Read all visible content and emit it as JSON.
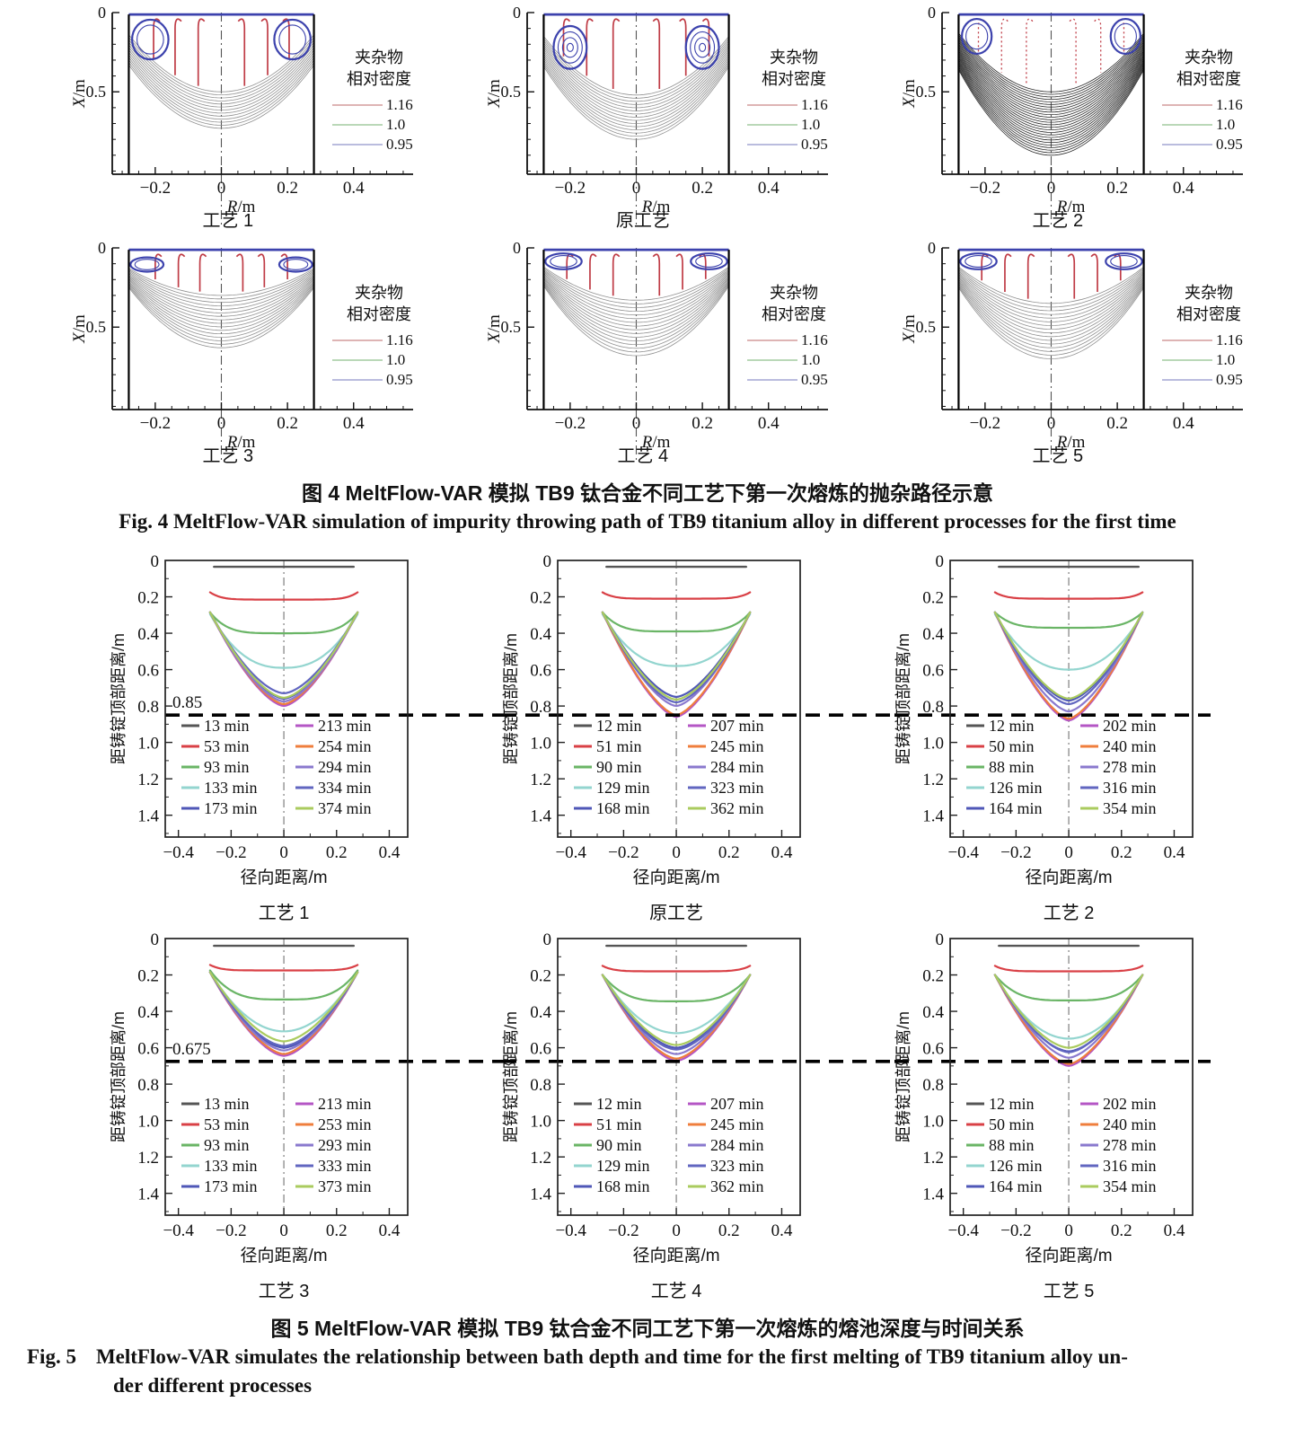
{
  "figure4": {
    "caption_cn": "图 4  MeltFlow-VAR 模拟 TB9 钛合金不同工艺下第一次熔炼的抛杂路径示意",
    "caption_en": "Fig. 4  MeltFlow-VAR simulation of impurity throwing path of TB9 titanium alloy in different processes for the first time"
  },
  "figure5": {
    "caption_cn": "图 5  MeltFlow-VAR 模拟 TB9 钛合金不同工艺下第一次熔炼的熔池深度与时间关系",
    "caption_en_label": "Fig. 5",
    "caption_en_line1": "MeltFlow-VAR simulates the relationship between bath depth and time for the first melting of TB9 titanium alloy un-",
    "caption_en_line2": "der different processes"
  },
  "chart_data": [
    {
      "id": "fig4",
      "type": "line",
      "xlabel_var": "R",
      "xlabel_unit": "/m",
      "ylabel_var": "X",
      "ylabel_unit": "/m",
      "xticks": [
        -0.2,
        0,
        0.2,
        0.4
      ],
      "xtick_labels": [
        "−0.2",
        "0",
        "0.2",
        "0.4"
      ],
      "yticks": [
        0,
        0.5
      ],
      "ytick_labels": [
        "0",
        "0.5"
      ],
      "xlim": [
        -0.33,
        0.58
      ],
      "ylim": [
        0,
        1.02
      ],
      "crucible_half_width": 0.28,
      "legend_title": [
        "夹杂物",
        "相对密度"
      ],
      "legend_entries": [
        {
          "label": "1.16",
          "color": "#d49c9c"
        },
        {
          "label": "1.0",
          "color": "#a3cba0"
        },
        {
          "label": "0.95",
          "color": "#a3a6d4"
        }
      ],
      "line_colors": {
        "streamline_red": "#bf3b45",
        "vortex_blue": "#3c42ad",
        "wall": "#000000",
        "centerline": "#555555"
      },
      "subplots": [
        {
          "title": "工艺 1",
          "pool_count": 13,
          "pool_edge": [
            0.14,
            0.33
          ],
          "pool_bottom": [
            0.5,
            0.73
          ],
          "pool_color": "#909090",
          "red_x": [
            0.07,
            0.14,
            0.205
          ],
          "vortex": {
            "cx": 0.215,
            "cy": 0.17,
            "rx": 0.055,
            "ry": 0.125,
            "rings": 2
          }
        },
        {
          "title": "原工艺",
          "pool_count": 15,
          "pool_edge": [
            0.15,
            0.34
          ],
          "pool_bottom": [
            0.52,
            0.8
          ],
          "pool_color": "#909090",
          "red_x": [
            0.07,
            0.15,
            0.22
          ],
          "vortex": {
            "cx": 0.2,
            "cy": 0.22,
            "rx": 0.05,
            "ry": 0.135,
            "rings": 4
          }
        },
        {
          "title": "工艺 2",
          "pool_count": 26,
          "pool_edge": [
            0.13,
            0.36
          ],
          "pool_bottom": [
            0.5,
            0.9
          ],
          "pool_color": "#2b2b2b",
          "red_dashed": true,
          "red_x": [
            0.075,
            0.15,
            0.22
          ],
          "vortex": {
            "cx": 0.225,
            "cy": 0.15,
            "rx": 0.045,
            "ry": 0.11,
            "rings": 2
          }
        },
        {
          "title": "工艺 3",
          "pool_count": 16,
          "pool_edge": [
            0.13,
            0.25
          ],
          "pool_bottom": [
            0.3,
            0.63
          ],
          "pool_color": "#909090",
          "red_x": [
            0.065,
            0.13,
            0.2
          ],
          "vortex": {
            "cx": 0.225,
            "cy": 0.105,
            "rx": 0.05,
            "ry": 0.045,
            "rings": 2
          }
        },
        {
          "title": "工艺 4",
          "pool_count": 16,
          "pool_edge": [
            0.12,
            0.24
          ],
          "pool_bottom": [
            0.33,
            0.68
          ],
          "pool_color": "#909090",
          "red_x": [
            0.07,
            0.14,
            0.21
          ],
          "vortex": {
            "cx": 0.22,
            "cy": 0.085,
            "rx": 0.055,
            "ry": 0.05,
            "rings": 2
          }
        },
        {
          "title": "工艺 5",
          "pool_count": 16,
          "pool_edge": [
            0.12,
            0.25
          ],
          "pool_bottom": [
            0.35,
            0.7
          ],
          "pool_color": "#909090",
          "red_x": [
            0.07,
            0.14,
            0.21
          ],
          "vortex": {
            "cx": 0.22,
            "cy": 0.085,
            "rx": 0.055,
            "ry": 0.05,
            "rings": 2
          }
        }
      ]
    },
    {
      "id": "fig5",
      "type": "line",
      "xlabel": "径向距离/m",
      "ylabel": "距铸锭顶部距离/m",
      "xticks": [
        -0.4,
        -0.2,
        0,
        0.2,
        0.4
      ],
      "xtick_labels": [
        "−0.4",
        "−0.2",
        "0",
        "0.2",
        "0.4"
      ],
      "yticks": [
        0,
        0.2,
        0.4,
        0.6,
        0.8,
        1.0,
        1.2,
        1.4
      ],
      "ytick_labels": [
        "0",
        "0.2",
        "0.4",
        "0.6",
        "0.8",
        "1.0",
        "1.2",
        "1.4"
      ],
      "xlim": [
        -0.45,
        0.47
      ],
      "ylim": [
        0,
        1.52
      ],
      "pool_half_width": 0.28,
      "series_colors": [
        "#555555",
        "#d94046",
        "#6ab566",
        "#93d5cf",
        "#4f57b7",
        "#b456c5",
        "#ef7e3c",
        "#8a79ce",
        "#6166c0",
        "#aacb5e"
      ],
      "subplots": [
        {
          "title": "工艺 1",
          "dash_depth": 0.85,
          "dash_label": "0.85",
          "series": [
            {
              "label": "13 min",
              "edge": 0.035,
              "bottom": 0.035,
              "k": 1,
              "w": 0.265
            },
            {
              "label": "53 min",
              "edge": 0.175,
              "bottom": 0.215,
              "k": 7
            },
            {
              "label": "93 min",
              "edge": 0.285,
              "bottom": 0.4,
              "k": 4.5
            },
            {
              "label": "133 min",
              "edge": 0.295,
              "bottom": 0.59,
              "k": 2.4
            },
            {
              "label": "173 min",
              "edge": 0.285,
              "bottom": 0.76,
              "k": 1.6
            },
            {
              "label": "213 min",
              "edge": 0.285,
              "bottom": 0.8,
              "k": 1.55
            },
            {
              "label": "254 min",
              "edge": 0.285,
              "bottom": 0.79,
              "k": 1.55
            },
            {
              "label": "294 min",
              "edge": 0.285,
              "bottom": 0.775,
              "k": 1.6
            },
            {
              "label": "334 min",
              "edge": 0.285,
              "bottom": 0.73,
              "k": 1.65
            },
            {
              "label": "374 min",
              "edge": 0.285,
              "bottom": 0.755,
              "k": 1.6
            }
          ]
        },
        {
          "title": "原工艺",
          "dash_depth": 0.85,
          "series": [
            {
              "label": "12 min",
              "edge": 0.035,
              "bottom": 0.035,
              "k": 1,
              "w": 0.265
            },
            {
              "label": "51 min",
              "edge": 0.175,
              "bottom": 0.21,
              "k": 7
            },
            {
              "label": "90 min",
              "edge": 0.285,
              "bottom": 0.39,
              "k": 4.5
            },
            {
              "label": "129 min",
              "edge": 0.295,
              "bottom": 0.58,
              "k": 2.4
            },
            {
              "label": "168 min",
              "edge": 0.285,
              "bottom": 0.75,
              "k": 1.6
            },
            {
              "label": "207 min",
              "edge": 0.285,
              "bottom": 0.86,
              "k": 1.5
            },
            {
              "label": "245 min",
              "edge": 0.285,
              "bottom": 0.85,
              "k": 1.5
            },
            {
              "label": "284 min",
              "edge": 0.285,
              "bottom": 0.8,
              "k": 1.55
            },
            {
              "label": "323 min",
              "edge": 0.285,
              "bottom": 0.78,
              "k": 1.6
            },
            {
              "label": "362 min",
              "edge": 0.285,
              "bottom": 0.765,
              "k": 1.6
            }
          ]
        },
        {
          "title": "工艺 2",
          "dash_depth": 0.85,
          "series": [
            {
              "label": "12 min",
              "edge": 0.035,
              "bottom": 0.035,
              "k": 1,
              "w": 0.265
            },
            {
              "label": "50 min",
              "edge": 0.175,
              "bottom": 0.21,
              "k": 7
            },
            {
              "label": "88 min",
              "edge": 0.285,
              "bottom": 0.37,
              "k": 4.5
            },
            {
              "label": "126 min",
              "edge": 0.295,
              "bottom": 0.6,
              "k": 2.2
            },
            {
              "label": "164 min",
              "edge": 0.285,
              "bottom": 0.77,
              "k": 1.6
            },
            {
              "label": "202 min",
              "edge": 0.285,
              "bottom": 0.88,
              "k": 1.5
            },
            {
              "label": "240 min",
              "edge": 0.285,
              "bottom": 0.87,
              "k": 1.5
            },
            {
              "label": "278 min",
              "edge": 0.285,
              "bottom": 0.83,
              "k": 1.55
            },
            {
              "label": "316 min",
              "edge": 0.285,
              "bottom": 0.79,
              "k": 1.6
            },
            {
              "label": "354 min",
              "edge": 0.285,
              "bottom": 0.76,
              "k": 1.6
            }
          ]
        },
        {
          "title": "工艺 3",
          "dash_depth": 0.675,
          "dash_label": "0.675",
          "series": [
            {
              "label": "13 min",
              "edge": 0.04,
              "bottom": 0.04,
              "k": 1,
              "w": 0.265
            },
            {
              "label": "53 min",
              "edge": 0.145,
              "bottom": 0.175,
              "k": 7
            },
            {
              "label": "93 min",
              "edge": 0.175,
              "bottom": 0.335,
              "k": 3.5
            },
            {
              "label": "133 min",
              "edge": 0.185,
              "bottom": 0.51,
              "k": 2.0
            },
            {
              "label": "173 min",
              "edge": 0.185,
              "bottom": 0.6,
              "k": 1.7
            },
            {
              "label": "213 min",
              "edge": 0.185,
              "bottom": 0.645,
              "k": 1.6
            },
            {
              "label": "253 min",
              "edge": 0.185,
              "bottom": 0.635,
              "k": 1.6
            },
            {
              "label": "293 min",
              "edge": 0.185,
              "bottom": 0.615,
              "k": 1.65
            },
            {
              "label": "333 min",
              "edge": 0.185,
              "bottom": 0.59,
              "k": 1.7
            },
            {
              "label": "373 min",
              "edge": 0.185,
              "bottom": 0.565,
              "k": 1.7
            }
          ]
        },
        {
          "title": "工艺 4",
          "dash_depth": 0.675,
          "series": [
            {
              "label": "12 min",
              "edge": 0.04,
              "bottom": 0.04,
              "k": 1,
              "w": 0.265
            },
            {
              "label": "51 min",
              "edge": 0.15,
              "bottom": 0.18,
              "k": 7
            },
            {
              "label": "90 min",
              "edge": 0.2,
              "bottom": 0.345,
              "k": 3.5
            },
            {
              "label": "129 min",
              "edge": 0.2,
              "bottom": 0.52,
              "k": 2.0
            },
            {
              "label": "168 min",
              "edge": 0.2,
              "bottom": 0.6,
              "k": 1.7
            },
            {
              "label": "207 min",
              "edge": 0.2,
              "bottom": 0.672,
              "k": 1.6
            },
            {
              "label": "245 min",
              "edge": 0.2,
              "bottom": 0.66,
              "k": 1.6
            },
            {
              "label": "284 min",
              "edge": 0.2,
              "bottom": 0.635,
              "k": 1.65
            },
            {
              "label": "323 min",
              "edge": 0.2,
              "bottom": 0.61,
              "k": 1.7
            },
            {
              "label": "362 min",
              "edge": 0.2,
              "bottom": 0.585,
              "k": 1.7
            }
          ]
        },
        {
          "title": "工艺 5",
          "dash_depth": 0.675,
          "series": [
            {
              "label": "12 min",
              "edge": 0.04,
              "bottom": 0.04,
              "k": 1,
              "w": 0.265
            },
            {
              "label": "50 min",
              "edge": 0.15,
              "bottom": 0.18,
              "k": 7
            },
            {
              "label": "88 min",
              "edge": 0.2,
              "bottom": 0.34,
              "k": 3.5
            },
            {
              "label": "126 min",
              "edge": 0.2,
              "bottom": 0.55,
              "k": 2.0
            },
            {
              "label": "164 min",
              "edge": 0.2,
              "bottom": 0.62,
              "k": 1.7
            },
            {
              "label": "202 min",
              "edge": 0.2,
              "bottom": 0.7,
              "k": 1.55
            },
            {
              "label": "240 min",
              "edge": 0.2,
              "bottom": 0.69,
              "k": 1.55
            },
            {
              "label": "278 min",
              "edge": 0.2,
              "bottom": 0.655,
              "k": 1.6
            },
            {
              "label": "316 min",
              "edge": 0.2,
              "bottom": 0.625,
              "k": 1.65
            },
            {
              "label": "354 min",
              "edge": 0.2,
              "bottom": 0.6,
              "k": 1.7
            }
          ]
        }
      ]
    }
  ]
}
